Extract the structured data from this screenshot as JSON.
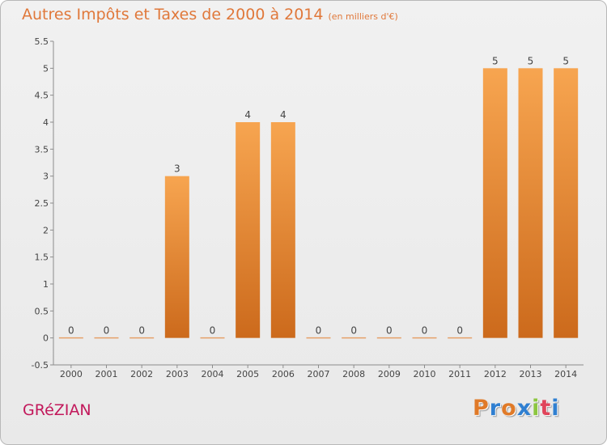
{
  "chart_data": {
    "type": "bar",
    "title": "Autres Impôts et Taxes de 2000 à 2014",
    "subtitle": "(en milliers d'€)",
    "categories": [
      "2000",
      "2001",
      "2002",
      "2003",
      "2004",
      "2005",
      "2006",
      "2007",
      "2008",
      "2009",
      "2010",
      "2011",
      "2012",
      "2013",
      "2014"
    ],
    "values": [
      0,
      0,
      0,
      3,
      0,
      4,
      4,
      0,
      0,
      0,
      0,
      0,
      5,
      5,
      5
    ],
    "value_labels": [
      "0",
      "0",
      "0",
      "3",
      "0",
      "4",
      "4",
      "0",
      "0",
      "0",
      "0",
      "0",
      "5",
      "5",
      "5"
    ],
    "ylim": [
      -0.5,
      5.5
    ],
    "yticks": [
      -0.5,
      0,
      0.5,
      1,
      1.5,
      2,
      2.5,
      3,
      3.5,
      4,
      4.5,
      5,
      5.5
    ],
    "ytick_labels": [
      "-0.5",
      "0",
      "0.5",
      "1",
      "1.5",
      "2",
      "2.5",
      "3",
      "3.5",
      "4",
      "4.5",
      "5",
      "5.5"
    ],
    "xlabel": "",
    "ylabel": "",
    "grid": false,
    "bar_color_top": "#f7a550",
    "bar_color_bottom": "#cc6a1c"
  },
  "footer": {
    "place": "GRéZIAN",
    "brand": "Proxiti",
    "brand_colors": [
      "#e07a28",
      "#2f7fd1",
      "#e07a28",
      "#2f7fd1",
      "#8cc63f",
      "#e0445a",
      "#2f7fd1"
    ]
  }
}
